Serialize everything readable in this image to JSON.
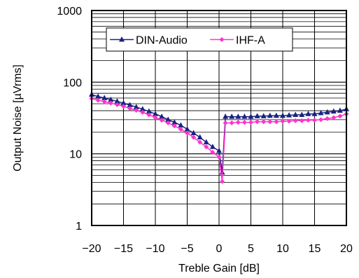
{
  "chart_data": {
    "type": "line",
    "xlabel": "Treble Gain [dB]",
    "ylabel": "Output Noise [µVrms]",
    "xlim": [
      -20,
      20
    ],
    "ylim": [
      1,
      1000
    ],
    "y_scale": "log",
    "grid": true,
    "legend_position": "top-center",
    "x_ticks": [
      "−20",
      "−15",
      "−10",
      "−5",
      "0",
      "5",
      "10",
      "15",
      "20"
    ],
    "y_ticks": [
      "1",
      "10",
      "100",
      "1000"
    ],
    "x": [
      -20,
      -19,
      -18,
      -17,
      -16,
      -15,
      -14,
      -13,
      -12,
      -11,
      -10,
      -9,
      -8,
      -7,
      -6,
      -5,
      -4,
      -3,
      -2,
      -1,
      0,
      0.5,
      1,
      2,
      3,
      4,
      5,
      6,
      7,
      8,
      9,
      10,
      11,
      12,
      13,
      14,
      15,
      16,
      17,
      18,
      19,
      20
    ],
    "series": [
      {
        "name": "DIN-Audio",
        "color": "#1a237e",
        "marker": "triangle",
        "values": [
          67,
          63,
          60,
          57,
          54,
          51,
          48,
          45,
          42,
          39,
          36,
          33,
          30,
          27.5,
          25,
          22,
          19.5,
          17,
          14.5,
          12.5,
          11,
          5.5,
          33,
          33,
          33,
          33,
          33,
          33.5,
          33.5,
          34,
          34,
          34,
          34.5,
          35,
          35,
          36,
          36,
          37,
          38,
          39,
          40,
          42
        ]
      },
      {
        "name": "IHF-A",
        "color": "#ff33cc",
        "marker": "diamond",
        "values": [
          59,
          56,
          53.5,
          51,
          48.5,
          46,
          43,
          40.5,
          38,
          35,
          32,
          29.5,
          27,
          24.5,
          22,
          19.5,
          17,
          14.5,
          12.5,
          10.5,
          9,
          4.1,
          27,
          27,
          27.5,
          27.5,
          27.5,
          28,
          28,
          28,
          28,
          28.5,
          28.5,
          29,
          29,
          29.5,
          29.5,
          30,
          31,
          32,
          33.5,
          36
        ]
      }
    ]
  }
}
